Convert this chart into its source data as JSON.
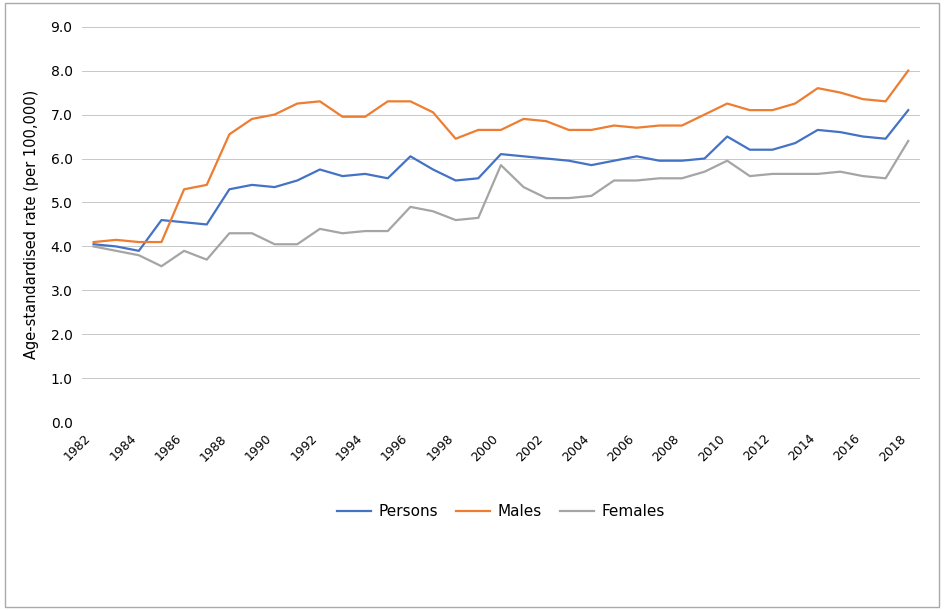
{
  "years": [
    1982,
    1983,
    1984,
    1985,
    1986,
    1987,
    1988,
    1989,
    1990,
    1991,
    1992,
    1993,
    1994,
    1995,
    1996,
    1997,
    1998,
    1999,
    2000,
    2001,
    2002,
    2003,
    2004,
    2005,
    2006,
    2007,
    2008,
    2009,
    2010,
    2011,
    2012,
    2013,
    2014,
    2015,
    2016,
    2017,
    2018
  ],
  "persons": [
    4.05,
    4.0,
    3.9,
    4.6,
    4.55,
    4.5,
    5.3,
    5.4,
    5.35,
    5.5,
    5.75,
    5.6,
    5.65,
    5.55,
    6.05,
    5.75,
    5.5,
    5.55,
    6.1,
    6.05,
    6.0,
    5.95,
    5.85,
    5.95,
    6.05,
    5.95,
    5.95,
    6.0,
    6.5,
    6.2,
    6.2,
    6.35,
    6.65,
    6.6,
    6.5,
    6.45,
    7.1
  ],
  "males": [
    4.1,
    4.15,
    4.1,
    4.1,
    5.3,
    5.4,
    6.55,
    6.9,
    7.0,
    7.25,
    7.3,
    6.95,
    6.95,
    7.3,
    7.3,
    7.05,
    6.45,
    6.65,
    6.65,
    6.9,
    6.85,
    6.65,
    6.65,
    6.75,
    6.7,
    6.75,
    6.75,
    7.0,
    7.25,
    7.1,
    7.1,
    7.25,
    7.6,
    7.5,
    7.35,
    7.3,
    8.0
  ],
  "females": [
    4.0,
    3.9,
    3.8,
    3.55,
    3.9,
    3.7,
    4.3,
    4.3,
    4.05,
    4.05,
    4.4,
    4.3,
    4.35,
    4.35,
    4.9,
    4.8,
    4.6,
    4.65,
    5.85,
    5.35,
    5.1,
    5.1,
    5.15,
    5.5,
    5.5,
    5.55,
    5.55,
    5.7,
    5.95,
    5.6,
    5.65,
    5.65,
    5.65,
    5.7,
    5.6,
    5.55,
    6.4
  ],
  "persons_color": "#4472C4",
  "males_color": "#ED7D31",
  "females_color": "#A5A5A5",
  "ylabel": "Age-standardised rate (per 100,000)",
  "ylim": [
    0.0,
    9.0
  ],
  "yticks": [
    0.0,
    1.0,
    2.0,
    3.0,
    4.0,
    5.0,
    6.0,
    7.0,
    8.0,
    9.0
  ],
  "xtick_step": 2,
  "legend_labels": [
    "Persons",
    "Males",
    "Females"
  ],
  "bg_color": "#FFFFFF",
  "grid_color": "#C8C8C8",
  "line_width": 1.6,
  "border_color": "#AAAAAA"
}
